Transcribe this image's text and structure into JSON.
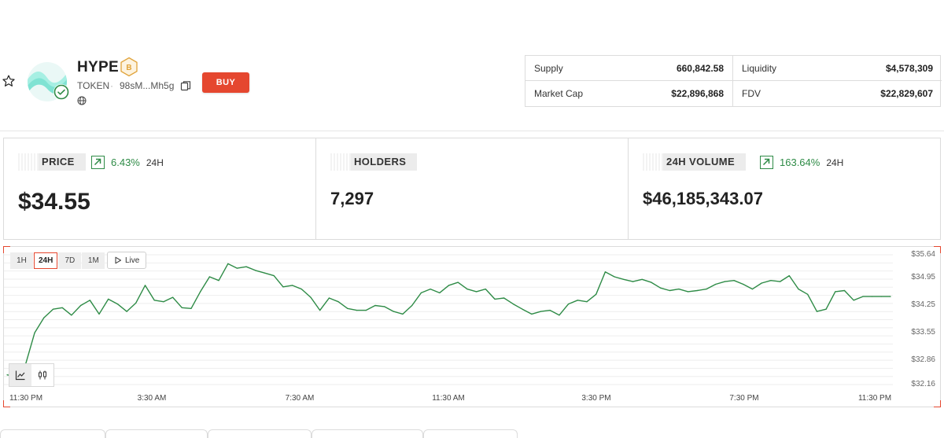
{
  "token": {
    "name": "HYPE",
    "type": "TOKEN",
    "address": "98sM...Mh5g",
    "chain_badge": "B",
    "buy_label": "BUY"
  },
  "stats": {
    "supply_label": "Supply",
    "supply_value": "660,842.58",
    "liquidity_label": "Liquidity",
    "liquidity_value": "$4,578,309",
    "market_cap_label": "Market Cap",
    "market_cap_value": "$22,896,868",
    "fdv_label": "FDV",
    "fdv_value": "$22,829,607"
  },
  "metrics": {
    "price": {
      "label": "PRICE",
      "change": "6.43%",
      "period": "24H",
      "value": "$34.55"
    },
    "holders": {
      "label": "HOLDERS",
      "value": "7,297"
    },
    "volume": {
      "label": "24H VOLUME",
      "change": "163.64%",
      "period": "24H",
      "value": "$46,185,343.07"
    }
  },
  "chart": {
    "ranges": [
      "1H",
      "24H",
      "7D",
      "1M"
    ],
    "active_range": "24H",
    "live_label": "Live",
    "colors": {
      "line": "#2e8b46",
      "accent": "#e5472f",
      "grid": "#eeeeee"
    }
  },
  "chart_data": {
    "type": "line",
    "title": "",
    "xlabel": "",
    "ylabel": "",
    "x_tick_labels": [
      "11:30 PM",
      "3:30 AM",
      "7:30 AM",
      "11:30 AM",
      "3:30 PM",
      "7:30 PM",
      "11:30 PM"
    ],
    "y_tick_labels": [
      "$35.64",
      "$34.95",
      "$34.25",
      "$33.55",
      "$32.86",
      "$32.16"
    ],
    "y_ticks": [
      35.64,
      34.95,
      34.25,
      33.55,
      32.86,
      32.16
    ],
    "ylim": [
      32.16,
      35.64
    ],
    "xlim": [
      0,
      24
    ],
    "series": [
      {
        "name": "price",
        "x": [
          0,
          0.4,
          0.75,
          1.0,
          1.25,
          1.5,
          1.75,
          2.0,
          2.25,
          2.5,
          2.75,
          3.0,
          3.25,
          3.5,
          3.75,
          4.0,
          4.25,
          4.5,
          4.75,
          5.0,
          5.25,
          5.5,
          5.75,
          6.0,
          6.25,
          6.5,
          6.75,
          7.0,
          7.25,
          7.5,
          7.75,
          8.0,
          8.25,
          8.5,
          8.75,
          9.0,
          9.25,
          9.5,
          9.75,
          10.0,
          10.25,
          10.5,
          10.75,
          11.0,
          11.25,
          11.5,
          11.75,
          12.0,
          12.25,
          12.5,
          12.75,
          13.0,
          13.25,
          13.5,
          13.75,
          14.0,
          14.25,
          14.5,
          14.75,
          15.0,
          15.25,
          15.5,
          15.75,
          16.0,
          16.25,
          16.5,
          16.75,
          17.0,
          17.25,
          17.5,
          17.75,
          18.0,
          18.25,
          18.5,
          18.75,
          19.0,
          19.25,
          19.5,
          19.75,
          20.0,
          20.25,
          20.5,
          20.75,
          21.0,
          21.25,
          21.5,
          21.75,
          22.0,
          22.25,
          22.5,
          22.75,
          23.0,
          23.25,
          23.5,
          23.75,
          24.0
        ],
        "values": [
          32.42,
          32.35,
          33.55,
          33.95,
          34.18,
          34.22,
          34.02,
          34.28,
          34.42,
          34.05,
          34.45,
          34.32,
          34.12,
          34.35,
          34.82,
          34.42,
          34.38,
          34.5,
          34.22,
          34.2,
          34.65,
          35.05,
          34.95,
          35.4,
          35.28,
          35.32,
          35.22,
          35.15,
          35.08,
          34.78,
          34.82,
          34.72,
          34.5,
          34.15,
          34.48,
          34.38,
          34.2,
          34.15,
          34.15,
          34.28,
          34.25,
          34.12,
          34.05,
          34.28,
          34.62,
          34.72,
          34.62,
          34.82,
          34.9,
          34.72,
          34.65,
          34.72,
          34.45,
          34.48,
          34.32,
          34.18,
          34.05,
          34.12,
          34.15,
          34.02,
          34.32,
          34.42,
          34.38,
          34.58,
          35.18,
          35.05,
          34.98,
          34.92,
          34.98,
          34.9,
          34.75,
          34.68,
          34.72,
          34.65,
          34.68,
          34.72,
          34.85,
          34.92,
          34.95,
          34.85,
          34.72,
          34.88,
          34.95,
          34.92,
          35.08,
          34.72,
          34.58,
          34.12,
          34.18,
          34.65,
          34.68,
          34.42,
          34.52,
          34.52,
          34.52,
          34.52
        ]
      }
    ]
  },
  "icons": {
    "star": "star-icon",
    "copy": "copy-icon",
    "globe": "globe-icon",
    "verified": "verified-check-icon",
    "line_chart": "line-chart-icon",
    "candles": "candlestick-icon"
  }
}
